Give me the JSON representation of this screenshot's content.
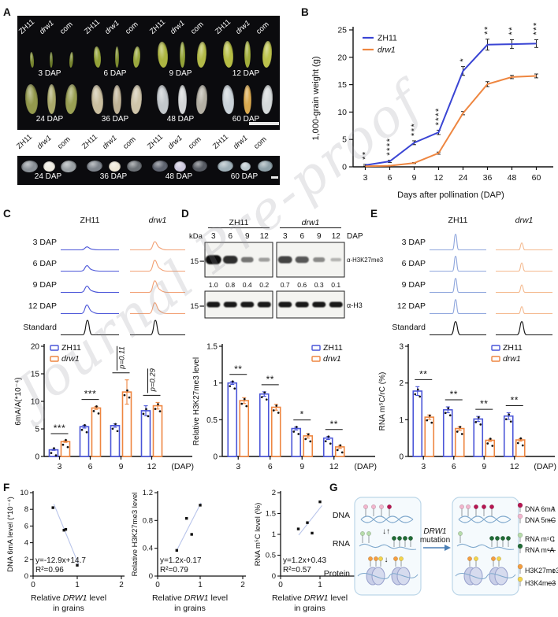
{
  "watermark": "Journal Pre-proof",
  "panel_labels": {
    "A": "A",
    "B": "B",
    "C": "C",
    "D": "D",
    "E": "E",
    "F": "F",
    "G": "G"
  },
  "colors": {
    "zh11_blue": "#3a45d4",
    "drw1_orange": "#ee8640",
    "trace_blue": "#4a55d8",
    "trace_salmon": "#f2a074",
    "trace_blue_light": "#8fa6dd",
    "trace_orange_light": "#f4b98e",
    "standard_black": "#141414",
    "fit_line": "#b8c4ea"
  },
  "panelA": {
    "genotypes": [
      {
        "label": "ZH11",
        "italic": false
      },
      {
        "label": "drw1",
        "italic": true
      },
      {
        "label": "com",
        "italic": false
      }
    ],
    "top_groups": [
      {
        "dap": "3 DAP",
        "row": 0,
        "h": 20,
        "widths": [
          5,
          4,
          5
        ],
        "colors": [
          "#77852f",
          "#6a7a2a",
          "#77852f"
        ]
      },
      {
        "dap": "6 DAP",
        "row": 0,
        "h": 27,
        "widths": [
          9,
          5,
          9
        ],
        "colors": [
          "#93a238",
          "#7d8c2f",
          "#9aa83e"
        ]
      },
      {
        "dap": "9 DAP",
        "row": 0,
        "h": 33,
        "widths": [
          13,
          7,
          12
        ],
        "colors": [
          "#adb542",
          "#93a238",
          "#b3ba48"
        ]
      },
      {
        "dap": "12 DAP",
        "row": 0,
        "h": 34,
        "widths": [
          13,
          8,
          12
        ],
        "colors": [
          "#b7be45",
          "#a2ae3c",
          "#bcc24c"
        ]
      },
      {
        "dap": "24 DAP",
        "row": 1,
        "h": 38,
        "widths": [
          16,
          11,
          15
        ],
        "colors": [
          "#93994d",
          "#aaa96b",
          "#9aa054"
        ]
      },
      {
        "dap": "36 DAP",
        "row": 1,
        "h": 37,
        "widths": [
          15,
          11,
          14
        ],
        "colors": [
          "#cabfa0",
          "#bfb296",
          "#cfc5aa"
        ]
      },
      {
        "dap": "48 DAP",
        "row": 1,
        "h": 37,
        "widths": [
          15,
          11,
          14
        ],
        "colors": [
          "#c2c7cb",
          "#d3d5d6",
          "#b4b0a4"
        ]
      },
      {
        "dap": "60 DAP",
        "row": 1,
        "h": 37,
        "widths": [
          15,
          10,
          14
        ],
        "colors": [
          "#cbd3d9",
          "#d9a94f",
          "#d5d9da"
        ]
      }
    ],
    "bottom_groups": [
      {
        "dap": "24 DAP",
        "widths": [
          21,
          15,
          20
        ],
        "heights": [
          15,
          13,
          15
        ],
        "colors": [
          "#8a9096",
          "#efece2",
          "#9aa0a4"
        ]
      },
      {
        "dap": "36 DAP",
        "widths": [
          20,
          15,
          19
        ],
        "heights": [
          14,
          13,
          14
        ],
        "colors": [
          "#7d838b",
          "#eee7d6",
          "#6c7176"
        ]
      },
      {
        "dap": "48 DAP",
        "widths": [
          20,
          15,
          19
        ],
        "heights": [
          14,
          13,
          14
        ],
        "colors": [
          "#5e636f",
          "#cecade",
          "#575b63"
        ]
      },
      {
        "dap": "60 DAP",
        "widths": [
          20,
          13,
          19
        ],
        "heights": [
          14,
          11,
          14
        ],
        "colors": [
          "#9fb0b8",
          "#bcc8ce",
          "#8ea0a8"
        ]
      }
    ]
  },
  "chart_data": [
    {
      "id": "B",
      "type": "line",
      "categories": [
        "3",
        "6",
        "9",
        "12",
        "24",
        "36",
        "48",
        "60"
      ],
      "series": [
        {
          "name": "ZH11",
          "italic": false,
          "color": "#3a45d4",
          "values": [
            0.3,
            1.0,
            4.4,
            6.3,
            17.5,
            22.3,
            22.4,
            22.5
          ],
          "err": [
            0.15,
            0.2,
            0.35,
            0.4,
            0.8,
            1.0,
            0.8,
            0.7
          ]
        },
        {
          "name": "drw1",
          "italic": true,
          "color": "#ee8640",
          "values": [
            0.1,
            0.2,
            0.7,
            2.5,
            9.8,
            15.1,
            16.4,
            16.6
          ],
          "err": [
            0.05,
            0.05,
            0.1,
            0.2,
            0.3,
            0.45,
            0.3,
            0.35
          ]
        }
      ],
      "sig": [
        "**",
        "****",
        "***",
        "****",
        "*",
        "**",
        "**",
        "***"
      ],
      "ylabel": "1,000-grain weight (g)",
      "xlabel": "Days after pollination (DAP)",
      "ylim": [
        0,
        25
      ],
      "yticks": [
        0,
        5,
        10,
        15,
        20,
        25
      ],
      "grid": false,
      "legend_position": "top-left"
    },
    {
      "id": "C",
      "type": "bar",
      "categories": [
        "3",
        "6",
        "9",
        "12"
      ],
      "xsuffix": "(DAP)",
      "series": [
        {
          "name": "ZH11",
          "italic": false,
          "color": "#4a55d8",
          "values": [
            1.2,
            5.4,
            5.6,
            8.3
          ],
          "err": [
            0.1,
            0.25,
            0.3,
            0.9
          ]
        },
        {
          "name": "drw1",
          "italic": true,
          "color": "#ee8640",
          "values": [
            2.7,
            8.8,
            11.7,
            9.2
          ],
          "err": [
            0.15,
            0.25,
            2.2,
            0.6
          ]
        }
      ],
      "sig": [
        "***",
        "***",
        "p=0.11",
        "p=0.29"
      ],
      "ylabel": "6mA/A(*10⁻⁴)",
      "ylim": [
        0,
        20
      ],
      "yticks": [
        0,
        5,
        10,
        15,
        20
      ],
      "ytick_labels": [
        "0",
        "5",
        "10",
        "15",
        "20"
      ],
      "legend_position": "top-left"
    },
    {
      "id": "D",
      "type": "bar",
      "categories": [
        "3",
        "6",
        "9",
        "12"
      ],
      "xsuffix": "(DAP)",
      "series": [
        {
          "name": "ZH11",
          "italic": false,
          "color": "#4a55d8",
          "values": [
            1.0,
            0.85,
            0.38,
            0.25
          ],
          "err": [
            0.02,
            0.03,
            0.02,
            0.02
          ]
        },
        {
          "name": "drw1",
          "italic": true,
          "color": "#ee8640",
          "values": [
            0.76,
            0.67,
            0.28,
            0.13
          ],
          "err": [
            0.04,
            0.04,
            0.03,
            0.02
          ]
        }
      ],
      "sig": [
        "**",
        "**",
        "*",
        "**"
      ],
      "ylabel": "Relative H3K27me3 level",
      "ylim": [
        0,
        1.5
      ],
      "yticks": [
        0,
        0.5,
        1,
        1.5
      ],
      "ytick_labels": [
        "0",
        "0.5",
        "1",
        "1.5"
      ],
      "legend_position": "top-right"
    },
    {
      "id": "E",
      "type": "bar",
      "categories": [
        "3",
        "6",
        "9",
        "12"
      ],
      "xsuffix": "(DAP)",
      "series": [
        {
          "name": "ZH11",
          "italic": false,
          "color": "#4a55d8",
          "values": [
            1.78,
            1.27,
            1.02,
            1.1
          ],
          "err": [
            0.12,
            0.08,
            0.07,
            0.09
          ]
        },
        {
          "name": "drw1",
          "italic": true,
          "color": "#ee8640",
          "values": [
            1.07,
            0.76,
            0.44,
            0.45
          ],
          "err": [
            0.06,
            0.05,
            0.03,
            0.03
          ]
        }
      ],
      "sig": [
        "**",
        "**",
        "**",
        "**"
      ],
      "ylabel": "RNA m⁵C/rC (%)",
      "ylim": [
        0,
        3
      ],
      "yticks": [
        0,
        1,
        2,
        3
      ],
      "ytick_labels": [
        "0",
        "1",
        "2",
        "3"
      ],
      "legend_position": "top-right"
    },
    {
      "id": "F1",
      "type": "scatter",
      "points": [
        [
          0.45,
          8.2
        ],
        [
          0.7,
          5.5
        ],
        [
          0.74,
          5.6
        ],
        [
          1.0,
          1.3
        ]
      ],
      "fit": {
        "label": "y=-12.9x+14.7",
        "r2": "R²=0.96",
        "slope": -12.9,
        "intercept": 14.7,
        "x_range": [
          0.47,
          1.03
        ]
      },
      "xlim": [
        0,
        2
      ],
      "xticks": [
        0,
        1,
        2
      ],
      "xtick_labels": [
        "0",
        "1",
        "2"
      ],
      "ylim": [
        0,
        10
      ],
      "yticks": [
        0,
        2,
        4,
        6,
        8,
        10
      ],
      "ytick_labels": [
        "0",
        "2",
        "4",
        "6",
        "8",
        "10"
      ],
      "ylabel": "DNA 6mA level (*10⁻⁴)",
      "xlabel": "Relative DRW1 level in grains"
    },
    {
      "id": "F2",
      "type": "scatter",
      "points": [
        [
          0.45,
          0.37
        ],
        [
          0.68,
          0.83
        ],
        [
          0.8,
          0.6
        ],
        [
          1.0,
          1.02
        ]
      ],
      "fit": {
        "label": "y=1.2x-0.17",
        "r2": "R²=0.79",
        "slope": 1.2,
        "intercept": -0.17,
        "x_range": [
          0.44,
          1.02
        ]
      },
      "xlim": [
        0,
        2
      ],
      "xticks": [
        0,
        1,
        2
      ],
      "xtick_labels": [
        "0",
        "1",
        "2"
      ],
      "ylim": [
        0,
        1.2
      ],
      "yticks": [
        0,
        0.4,
        0.8,
        1.2
      ],
      "ytick_labels": [
        "0",
        "0.4",
        "0.8",
        "1.2"
      ],
      "ylabel": "Relative H3K27me3 level",
      "xlabel": "Relative DRW1 level in grains"
    },
    {
      "id": "F3",
      "type": "scatter",
      "points": [
        [
          0.45,
          1.13
        ],
        [
          0.68,
          1.28
        ],
        [
          0.8,
          1.03
        ],
        [
          1.0,
          1.78
        ]
      ],
      "fit": {
        "label": "y=1.2x+0.43",
        "r2": "R²=0.57",
        "slope": 1.2,
        "intercept": 0.43,
        "x_range": [
          0.46,
          1.05
        ]
      },
      "xlim": [
        0,
        2
      ],
      "xticks": [
        0,
        1,
        2
      ],
      "xtick_labels": [
        "0",
        "1",
        "2"
      ],
      "ylim": [
        0,
        2
      ],
      "yticks": [
        0,
        0.5,
        1,
        1.5,
        2
      ],
      "ytick_labels": [
        "0",
        "0.5",
        "1",
        "1.5",
        "2"
      ],
      "ylabel": "RNA m⁵C level (%)",
      "xlabel": "Relative DRW1 level in grains"
    }
  ],
  "panelC": {
    "traces": {
      "col_headers": [
        "ZH11",
        "drw1"
      ],
      "col_italic": [
        false,
        true
      ],
      "rows": [
        "3 DAP",
        "6 DAP",
        "9 DAP",
        "12 DAP"
      ],
      "standard_label": "Standard",
      "series1_peaks": [
        0.18,
        0.33,
        0.38,
        0.52
      ],
      "series2_peaks": [
        0.5,
        0.66,
        0.7,
        0.66
      ],
      "standard_peak": 0.88,
      "shape": "broad"
    }
  },
  "panelD": {
    "blot": {
      "kda": "kDa",
      "headers": [
        "ZH11",
        "drw1"
      ],
      "header_italic": [
        false,
        true
      ],
      "lanes": [
        "3",
        "6",
        "9",
        "12"
      ],
      "dap": "DAP",
      "marker": "15",
      "ab1": "α-H3K27me3",
      "ab2": "α-H3",
      "quant": [
        "1.0",
        "0.8",
        "0.4",
        "0.2",
        "0.7",
        "0.6",
        "0.3",
        "0.1"
      ],
      "band1": [
        1.0,
        0.8,
        0.4,
        0.2,
        0.7,
        0.6,
        0.3,
        0.1
      ],
      "band2": [
        0.95,
        0.95,
        0.95,
        0.95,
        0.95,
        0.95,
        0.95,
        0.95
      ]
    }
  },
  "panelE": {
    "traces": {
      "col_headers": [
        "ZH11",
        "drw1"
      ],
      "col_italic": [
        false,
        true
      ],
      "rows": [
        "3 DAP",
        "6 DAP",
        "9 DAP",
        "12 DAP"
      ],
      "standard_label": "Standard",
      "series1_peaks": [
        0.95,
        0.9,
        0.85,
        0.85
      ],
      "series2_peaks": [
        0.42,
        0.5,
        0.45,
        0.42
      ],
      "standard_peak": 0.8,
      "shape": "sharp"
    }
  },
  "panelF": {
    "xlabel_pre": "Relative",
    "xlabel_gene": "DRW1",
    "xlabel_post": "level",
    "xlabel_line2": "in grains"
  },
  "panelG": {
    "rows": [
      "DNA",
      "RNA",
      "Protein"
    ],
    "arrow_label_line1": "DRW1",
    "arrow_label_line2": "mutation",
    "legend": [
      {
        "color": "#b81552",
        "label": "DNA 6mA",
        "change": "↑"
      },
      {
        "color": "#f3b6ce",
        "label": "DNA 5mC",
        "change": "—"
      },
      {
        "color": "#b7dcab",
        "label": "RNA m⁵C",
        "change": "↓"
      },
      {
        "color": "#1f6b35",
        "label": "RNA m⁶A",
        "change": "—"
      },
      {
        "color": "#f59e3f",
        "label": "H3K27me3",
        "change": "↓"
      },
      {
        "color": "#f3d44b",
        "label": "H3K4me3",
        "change": "—"
      }
    ]
  }
}
